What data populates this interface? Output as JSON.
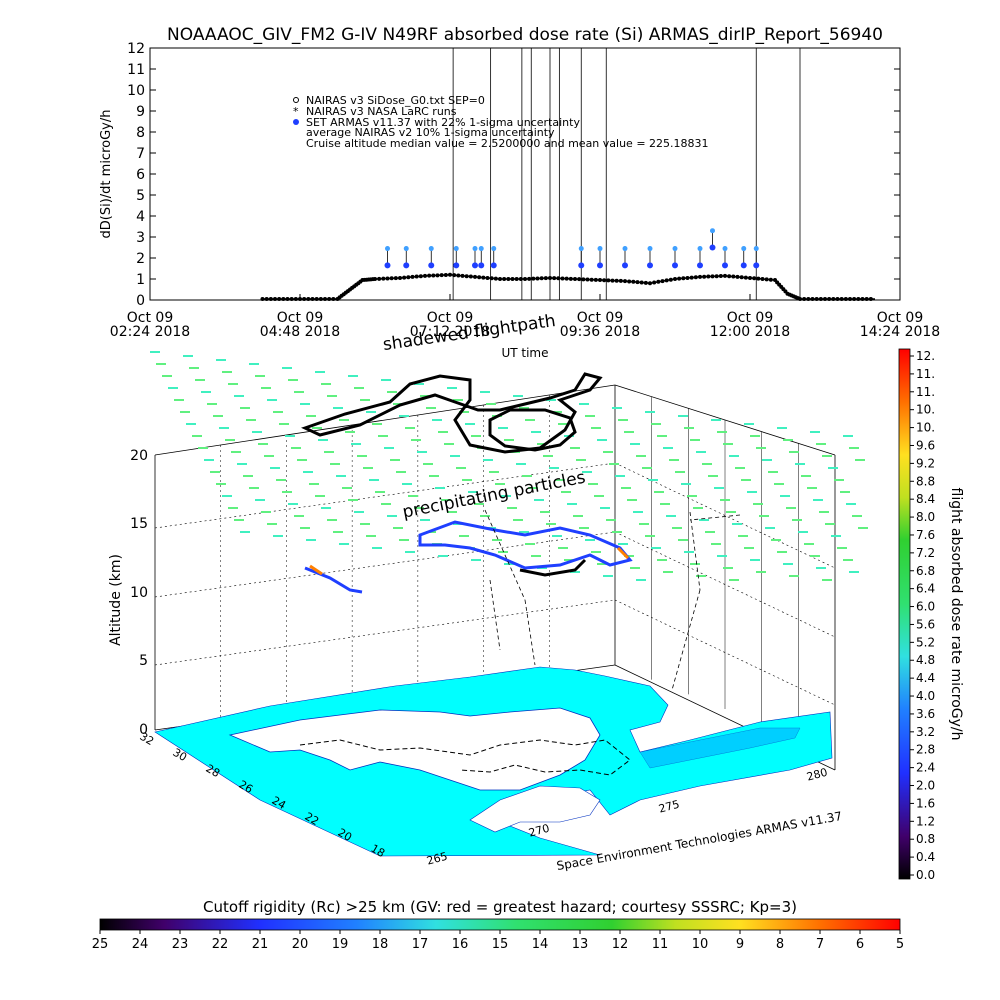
{
  "header": {
    "title": "NOAAAOC_GIV_FM2 G-IV   N49RF  absorbed dose rate (Si) ARMAS_dirIP_Report_56940"
  },
  "colors": {
    "nairas_black": "#000000",
    "armas_blue": "#1f3fff",
    "armas_light": "#40a0ff",
    "grid_green": "#40e060",
    "ground_cyan": "#00ffff",
    "precip_green": "#60f080",
    "dose_bar_top": "#ff0000"
  },
  "chart_data": [
    {
      "type": "scatter",
      "title": "NOAAAOC_GIV_FM2 G-IV   N49RF  absorbed dose rate (Si) ARMAS_dirIP_Report_56940",
      "xlabel": "UT time",
      "ylabel": "dD(Si)/dt microGy/h",
      "ylim": [
        0,
        12
      ],
      "yticks": [
        "0",
        "1",
        "2",
        "3",
        "4",
        "5",
        "6",
        "7",
        "8",
        "9",
        "10",
        "11",
        "12"
      ],
      "xlim_hours": [
        2.4,
        14.4
      ],
      "xticks": [
        {
          "day": "Oct 09",
          "time": "02:24 2018",
          "h": 2.4
        },
        {
          "day": "Oct 09",
          "time": "04:48 2018",
          "h": 4.8
        },
        {
          "day": "Oct 09",
          "time": "07:12 2018",
          "h": 7.2
        },
        {
          "day": "Oct 09",
          "time": "09:36 2018",
          "h": 9.6
        },
        {
          "day": "Oct 09",
          "time": "12:00 2018",
          "h": 12.0
        },
        {
          "day": "Oct 09",
          "time": "14:24 2018",
          "h": 14.4
        }
      ],
      "legend": [
        {
          "symbol": "o",
          "text": "NAIRAS v3 SiDose_G0.txt SEP=0"
        },
        {
          "symbol": "*",
          "text": "NAIRAS v3 NASA LaRC runs"
        },
        {
          "symbol": "●",
          "text": "SET ARMAS v11.37 with 22% 1-sigma uncertainty"
        },
        {
          "symbol": "",
          "text": "average NAIRAS v2 10% 1-sigma uncertainty"
        },
        {
          "symbol": "",
          "text": "Cruise altitude median value = 2.5200000 and mean value = 225.18831"
        }
      ],
      "series": [
        {
          "name": "NAIRAS v3 SiDose_G0.txt SEP=0",
          "x": [
            4.2,
            4.6,
            5.0,
            5.4,
            5.6,
            5.8,
            6.0,
            6.4,
            6.8,
            7.2,
            7.6,
            8.0,
            8.4,
            8.8,
            9.2,
            9.6,
            10.0,
            10.4,
            10.8,
            11.2,
            11.6,
            12.0,
            12.4,
            12.6,
            12.8,
            13.2,
            13.6,
            14.0
          ],
          "values": [
            0.05,
            0.05,
            0.05,
            0.05,
            0.5,
            0.95,
            1.0,
            1.05,
            1.15,
            1.2,
            1.1,
            1.0,
            1.0,
            1.05,
            1.0,
            0.95,
            0.9,
            0.8,
            1.0,
            1.1,
            1.15,
            1.05,
            0.95,
            0.3,
            0.05,
            0.05,
            0.05,
            0.05
          ]
        },
        {
          "name": "SET ARMAS v11.37 with 22% 1-sigma uncertainty",
          "x": [
            6.2,
            6.5,
            6.9,
            7.3,
            7.6,
            7.7,
            7.9,
            9.3,
            9.6,
            10.0,
            10.4,
            10.8,
            11.2,
            11.4,
            11.6,
            11.9,
            12.1
          ],
          "values": [
            1.65,
            1.65,
            1.65,
            1.65,
            1.65,
            1.65,
            1.65,
            1.65,
            1.65,
            1.65,
            1.65,
            1.65,
            1.65,
            2.5,
            1.65,
            1.65,
            1.65
          ]
        }
      ],
      "vertical_lines_h": [
        7.25,
        7.85,
        8.35,
        8.5,
        8.8,
        8.95,
        9.3,
        9.7,
        12.1,
        12.8
      ]
    },
    {
      "type": "scatter",
      "title": "shadewed flightpath",
      "xlabel": "",
      "ylabel": "Altitude (km)",
      "zticks": [
        "0",
        "5",
        "10",
        "15",
        "20"
      ],
      "lat_ticks": [
        "32",
        "30",
        "28",
        "26",
        "24",
        "22",
        "20",
        "18"
      ],
      "lon_ticks": [
        "265",
        "270",
        "275",
        "280"
      ],
      "annotations": [
        "precipitating particles",
        "Space Environment Technologies ARMAS v11.37"
      ]
    }
  ],
  "side_colorbar": {
    "label": "flight absorbed dose rate microGy/h",
    "ticks": [
      "12.",
      "11.",
      "11.",
      "10.",
      "10.",
      "9.6",
      "9.2",
      "8.8",
      "8.4",
      "8.0",
      "7.6",
      "7.2",
      "6.8",
      "6.4",
      "6.0",
      "5.6",
      "5.2",
      "4.8",
      "4.4",
      "4.0",
      "3.6",
      "3.2",
      "2.8",
      "2.4",
      "2.0",
      "1.6",
      "1.2",
      "0.8",
      "0.4",
      "0.0"
    ]
  },
  "bottom_colorbar": {
    "label": "Cutoff rigidity (Rc) >25 km (GV: red = greatest hazard; courtesy SSSRC; Kp=3)",
    "ticks": [
      "25",
      "24",
      "23",
      "22",
      "21",
      "20",
      "19",
      "18",
      "17",
      "16",
      "15",
      "14",
      "13",
      "12",
      "11",
      "10",
      "9",
      "8",
      "7",
      "6",
      "5"
    ]
  }
}
